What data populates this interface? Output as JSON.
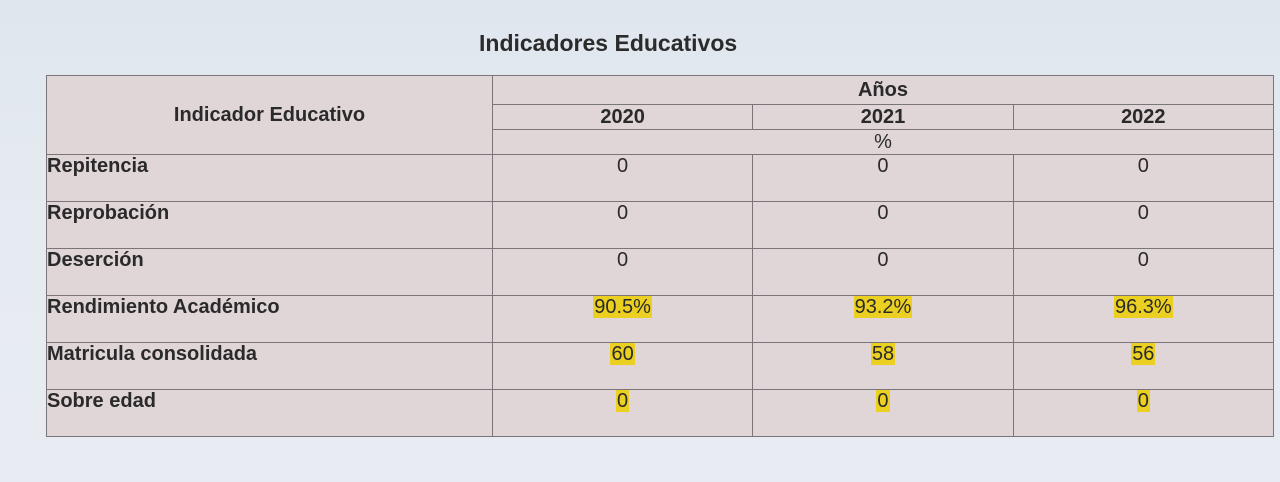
{
  "title": "Indicadores Educativos",
  "table": {
    "indicator_header": "Indicador Educativo",
    "years_header": "Años",
    "years": [
      "2020",
      "2021",
      "2022"
    ],
    "unit_label": "%",
    "rows": [
      {
        "label": "Repitencia",
        "values": [
          "0",
          "0",
          "0"
        ],
        "highlighted": false
      },
      {
        "label": "Reprobación",
        "values": [
          "0",
          "0",
          "0"
        ],
        "highlighted": false
      },
      {
        "label": "Deserción",
        "values": [
          "0",
          "0",
          "0"
        ],
        "highlighted": false
      },
      {
        "label": "Rendimiento Académico",
        "values": [
          "90.5%",
          "93.2%",
          "96.3%"
        ],
        "highlighted": true
      },
      {
        "label": "Matricula consolidada",
        "values": [
          "60",
          "58",
          "56"
        ],
        "highlighted": true
      },
      {
        "label": "Sobre edad",
        "values": [
          "0",
          "0",
          "0"
        ],
        "highlighted": true
      }
    ]
  },
  "colors": {
    "highlight": "#ecd021",
    "table_background": "#e0d5d7",
    "page_background": "#e6ebf1"
  }
}
